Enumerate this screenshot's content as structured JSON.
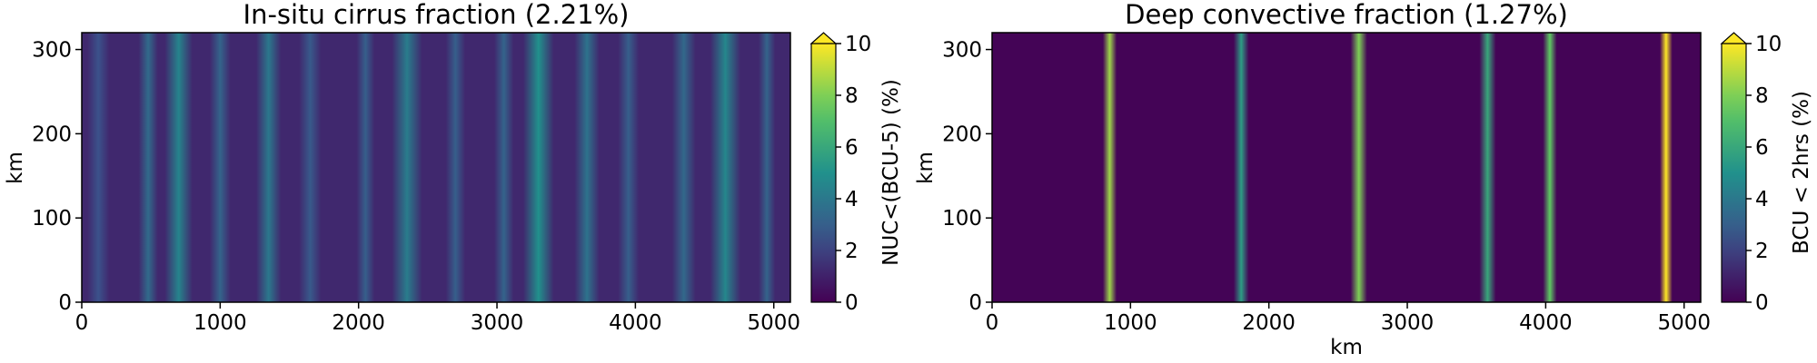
{
  "chart_data": [
    {
      "type": "heatmap",
      "title": "In-situ cirrus fraction (2.21%)",
      "xlabel": "",
      "ylabel": "km",
      "xlim": [
        0,
        5120
      ],
      "ylim": [
        0,
        320
      ],
      "xticks": [
        0,
        1000,
        2000,
        3000,
        4000,
        5000
      ],
      "yticks": [
        0,
        100,
        200,
        300
      ],
      "colormap": "viridis",
      "colorbar": {
        "label": "NUC<(BCU-5) (%)",
        "range": [
          0,
          10
        ],
        "ticks": [
          0,
          2,
          4,
          6,
          8,
          10
        ],
        "extend": "max"
      },
      "bands": [
        {
          "x": 120,
          "width": 160,
          "value": 2.5
        },
        {
          "x": 480,
          "width": 140,
          "value": 3.5
        },
        {
          "x": 700,
          "width": 200,
          "value": 4.5
        },
        {
          "x": 1000,
          "width": 150,
          "value": 3.2
        },
        {
          "x": 1350,
          "width": 180,
          "value": 4.0
        },
        {
          "x": 1650,
          "width": 160,
          "value": 2.8
        },
        {
          "x": 2050,
          "width": 130,
          "value": 3.0
        },
        {
          "x": 2350,
          "width": 220,
          "value": 4.2
        },
        {
          "x": 2700,
          "width": 140,
          "value": 3.0
        },
        {
          "x": 3050,
          "width": 140,
          "value": 3.2
        },
        {
          "x": 3300,
          "width": 220,
          "value": 5.0
        },
        {
          "x": 3650,
          "width": 180,
          "value": 3.8
        },
        {
          "x": 3950,
          "width": 150,
          "value": 3.0
        },
        {
          "x": 4350,
          "width": 170,
          "value": 3.4
        },
        {
          "x": 4650,
          "width": 220,
          "value": 4.6
        },
        {
          "x": 4950,
          "width": 120,
          "value": 3.2
        }
      ],
      "background_value": 1.2
    },
    {
      "type": "heatmap",
      "title": "Deep convective fraction (1.27%)",
      "xlabel": "km",
      "ylabel": "km",
      "xlim": [
        0,
        5120
      ],
      "ylim": [
        0,
        320
      ],
      "xticks": [
        0,
        1000,
        2000,
        3000,
        4000,
        5000
      ],
      "yticks": [
        0,
        100,
        200,
        300
      ],
      "colormap": "viridis",
      "colorbar": {
        "label": "BCU < 2hrs (%)",
        "range": [
          0,
          10
        ],
        "ticks": [
          0,
          2,
          4,
          6,
          8,
          10
        ],
        "extend": "max"
      },
      "bands": [
        {
          "x": 850,
          "width": 100,
          "value": 8.5
        },
        {
          "x": 1800,
          "width": 110,
          "value": 5.5
        },
        {
          "x": 2650,
          "width": 120,
          "value": 8.0
        },
        {
          "x": 3580,
          "width": 120,
          "value": 6.0
        },
        {
          "x": 4030,
          "width": 100,
          "value": 7.5
        },
        {
          "x": 4870,
          "width": 90,
          "value": 10.0
        }
      ],
      "background_value": 0.1
    }
  ]
}
